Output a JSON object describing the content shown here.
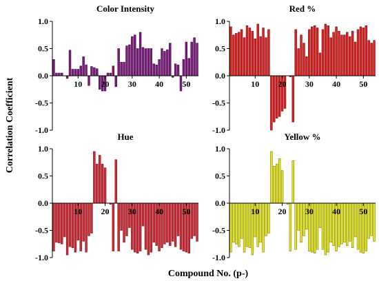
{
  "figure": {
    "ylabel": "Correlation Coefficient",
    "xlabel": "Compound No. (p-)"
  },
  "chart_data": [
    {
      "type": "bar",
      "title": "Color Intensity",
      "x": [
        1,
        2,
        3,
        4,
        5,
        6,
        7,
        8,
        9,
        10,
        11,
        12,
        13,
        14,
        15,
        16,
        17,
        18,
        19,
        20,
        21,
        22,
        23,
        24,
        25,
        26,
        27,
        28,
        29,
        30,
        31,
        32,
        33,
        34,
        35,
        36,
        37,
        38,
        39,
        40,
        41,
        42,
        43,
        44,
        45,
        46,
        47,
        48,
        49,
        50,
        51,
        52,
        53,
        54
      ],
      "values": [
        0.3,
        0.05,
        0.05,
        0.05,
        0,
        -0.05,
        0.47,
        0.12,
        0.12,
        0.12,
        0.18,
        0.35,
        0.2,
        -0.18,
        0.17,
        0.15,
        0.13,
        -0.25,
        -0.28,
        -0.28,
        0.05,
        0.05,
        0.18,
        -0.2,
        0.5,
        0.25,
        0.25,
        0.55,
        0.57,
        0.72,
        0.75,
        0.5,
        0.8,
        0.52,
        0.5,
        0.5,
        0.5,
        0.22,
        0.2,
        0.3,
        0.5,
        0.45,
        0.48,
        0.6,
        -0.03,
        0.22,
        0.2,
        -0.28,
        0.3,
        0.62,
        0.32,
        0.62,
        0.7,
        0.6
      ],
      "color": "#7b1b7e",
      "xlim": [
        0.5,
        54.5
      ],
      "ylim": [
        -1.0,
        1.0
      ],
      "xticks": [
        10,
        20,
        30,
        40,
        50
      ],
      "yticks": [
        -1.0,
        -0.5,
        0.0,
        0.5,
        1.0
      ],
      "show_xticks": true
    },
    {
      "type": "bar",
      "title": "Red %",
      "x": [
        1,
        2,
        3,
        4,
        5,
        6,
        7,
        8,
        9,
        10,
        11,
        12,
        13,
        14,
        15,
        16,
        17,
        18,
        19,
        20,
        21,
        22,
        23,
        24,
        25,
        26,
        27,
        28,
        29,
        30,
        31,
        32,
        33,
        34,
        35,
        36,
        37,
        38,
        39,
        40,
        41,
        42,
        43,
        44,
        45,
        46,
        47,
        48,
        49,
        50,
        51,
        52,
        53,
        54
      ],
      "values": [
        0.9,
        0.75,
        0.78,
        0.8,
        0.85,
        0.7,
        0.92,
        0.88,
        0.82,
        0.68,
        0.95,
        0.72,
        0.88,
        0.7,
        0.85,
        -1.0,
        -0.85,
        -0.78,
        -0.75,
        -0.65,
        -0.6,
        0.0,
        -0.02,
        -0.85,
        0.85,
        0.5,
        0.75,
        0.6,
        0.35,
        0.85,
        0.9,
        0.92,
        0.88,
        0.42,
        0.85,
        0.95,
        0.92,
        0.7,
        0.8,
        0.9,
        0.82,
        0.75,
        0.75,
        0.8,
        0.72,
        0.82,
        0.62,
        0.85,
        0.9,
        0.88,
        0.92,
        0.65,
        0.6,
        0.65
      ],
      "color": "#e02020",
      "xlim": [
        0.5,
        54.5
      ],
      "ylim": [
        -1.0,
        1.0
      ],
      "xticks": [
        10,
        20,
        30,
        40,
        50
      ],
      "yticks": [
        -1.0,
        -0.5,
        0.0,
        0.5,
        1.0
      ],
      "show_xticks": true
    },
    {
      "type": "bar",
      "title": "Hue",
      "x": [
        1,
        2,
        3,
        4,
        5,
        6,
        7,
        8,
        9,
        10,
        11,
        12,
        13,
        14,
        15,
        16,
        17,
        18,
        19,
        20,
        21,
        22,
        23,
        24,
        25,
        26,
        27,
        28,
        29,
        30,
        31,
        32,
        33,
        34,
        35,
        36,
        37,
        38,
        39,
        40,
        41,
        42,
        43,
        44,
        45,
        46,
        47,
        48,
        49,
        50,
        51,
        52,
        53,
        54
      ],
      "values": [
        -0.88,
        -0.72,
        -0.73,
        -0.75,
        -0.62,
        -0.95,
        -0.8,
        -0.82,
        -0.9,
        -0.68,
        -0.88,
        -0.7,
        -0.9,
        -0.6,
        -0.55,
        0.95,
        0.72,
        0.88,
        0.72,
        0.65,
        0.0,
        -0.02,
        -0.88,
        0.8,
        -0.88,
        -0.5,
        -0.72,
        -0.6,
        -0.45,
        -0.85,
        -0.9,
        -0.92,
        -0.88,
        -0.42,
        -0.85,
        -0.95,
        -0.9,
        -0.72,
        -0.78,
        -0.88,
        -0.82,
        -0.75,
        -0.72,
        -0.78,
        -0.7,
        -0.8,
        -0.6,
        -0.85,
        -0.88,
        -0.9,
        -0.92,
        -0.65,
        -0.6,
        -0.7
      ],
      "color": "#d42a35",
      "xlim": [
        0.5,
        54.5
      ],
      "ylim": [
        -1.0,
        1.0
      ],
      "xticks": [
        10,
        20,
        30,
        40,
        50
      ],
      "yticks": [
        -1.0,
        -0.5,
        0.0,
        0.5,
        1.0
      ],
      "show_xticks": true
    },
    {
      "type": "bar",
      "title": "Yellow %",
      "x": [
        1,
        2,
        3,
        4,
        5,
        6,
        7,
        8,
        9,
        10,
        11,
        12,
        13,
        14,
        15,
        16,
        17,
        18,
        19,
        20,
        21,
        22,
        23,
        24,
        25,
        26,
        27,
        28,
        29,
        30,
        31,
        32,
        33,
        34,
        35,
        36,
        37,
        38,
        39,
        40,
        41,
        42,
        43,
        44,
        45,
        46,
        47,
        48,
        49,
        50,
        51,
        52,
        53,
        54
      ],
      "values": [
        -0.9,
        -0.72,
        -0.75,
        -0.8,
        -0.65,
        -0.9,
        -0.8,
        -0.82,
        -0.95,
        -0.62,
        -0.8,
        -0.72,
        -0.9,
        -0.6,
        -0.55,
        0.95,
        0.68,
        0.72,
        0.82,
        0.6,
        0.0,
        -0.02,
        -0.88,
        0.78,
        -0.85,
        -0.5,
        -0.72,
        -0.6,
        -0.48,
        -0.88,
        -0.9,
        -0.92,
        -0.85,
        -0.45,
        -0.85,
        -0.95,
        -0.9,
        -0.72,
        -0.78,
        -0.88,
        -0.8,
        -0.75,
        -0.72,
        -0.78,
        -0.7,
        -0.82,
        -0.62,
        -0.85,
        -0.9,
        -0.92,
        -0.88,
        -0.65,
        -0.6,
        -0.7
      ],
      "color": "#e6e61e",
      "xlim": [
        0.5,
        54.5
      ],
      "ylim": [
        -1.0,
        1.0
      ],
      "xticks": [
        10,
        20,
        30,
        40,
        50
      ],
      "yticks": [
        -1.0,
        -0.5,
        0.0,
        0.5,
        1.0
      ],
      "show_xticks": true
    }
  ]
}
